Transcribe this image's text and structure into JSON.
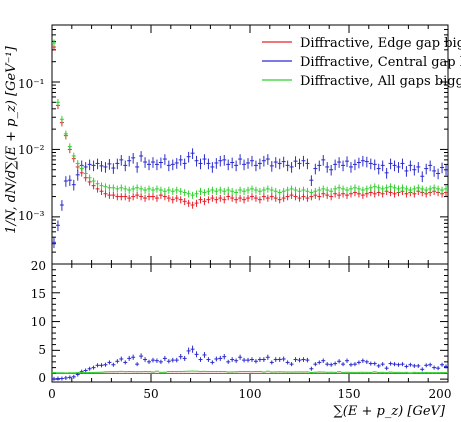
{
  "chart_data": [
    {
      "panel": "main",
      "type": "scatter",
      "log_y": true,
      "ylim": [
        0.0002,
        0.7
      ],
      "xlim": [
        0,
        200
      ],
      "ylabel": "1/N, dN/d∑(E + p_z) [GeV⁻¹]",
      "ytick_labels": [
        "10⁻¹",
        "10⁻²",
        "10⁻³"
      ],
      "ytick_values": [
        0.1,
        0.01,
        0.001
      ],
      "legend": {
        "placement": "top-right",
        "entries": [
          "Diffractive, Edge gap bigg",
          "Diffractive, Central gap bi",
          "Diffractive, All gaps bigge"
        ]
      },
      "x": [
        1,
        3,
        5,
        7,
        9,
        11,
        13,
        15,
        17,
        19,
        21,
        23,
        25,
        27,
        29,
        31,
        33,
        35,
        37,
        39,
        41,
        43,
        45,
        47,
        49,
        51,
        53,
        55,
        57,
        59,
        61,
        63,
        65,
        67,
        69,
        71,
        73,
        75,
        77,
        79,
        81,
        83,
        85,
        87,
        89,
        91,
        93,
        95,
        97,
        99,
        101,
        103,
        105,
        107,
        109,
        111,
        113,
        115,
        117,
        119,
        121,
        123,
        125,
        127,
        129,
        131,
        133,
        135,
        137,
        139,
        141,
        143,
        145,
        147,
        149,
        151,
        153,
        155,
        157,
        159,
        161,
        163,
        165,
        167,
        169,
        171,
        173,
        175,
        177,
        179,
        181,
        183,
        185,
        187,
        189,
        191,
        193,
        195,
        197,
        199
      ],
      "series": [
        {
          "name": "Diffractive, Edge gap bigg",
          "color": "#e8202a",
          "values": [
            0.33,
            0.045,
            0.025,
            0.016,
            0.01,
            0.0073,
            0.0055,
            0.0045,
            0.0038,
            0.0033,
            0.0029,
            0.0026,
            0.0024,
            0.0022,
            0.0021,
            0.0021,
            0.002,
            0.002,
            0.002,
            0.0019,
            0.002,
            0.0021,
            0.002,
            0.0019,
            0.002,
            0.002,
            0.0019,
            0.0021,
            0.002,
            0.0019,
            0.0018,
            0.0019,
            0.0018,
            0.0017,
            0.0016,
            0.0015,
            0.0016,
            0.0018,
            0.0017,
            0.0018,
            0.0019,
            0.0018,
            0.0019,
            0.0018,
            0.002,
            0.0019,
            0.0018,
            0.0019,
            0.0018,
            0.0019,
            0.002,
            0.0019,
            0.0018,
            0.002,
            0.0019,
            0.002,
            0.0019,
            0.0018,
            0.0019,
            0.002,
            0.0021,
            0.002,
            0.0019,
            0.002,
            0.0019,
            0.002,
            0.0021,
            0.002,
            0.0022,
            0.0021,
            0.002,
            0.0022,
            0.0021,
            0.0022,
            0.0021,
            0.0022,
            0.0023,
            0.0022,
            0.0021,
            0.0022,
            0.0023,
            0.0022,
            0.0023,
            0.0022,
            0.0024,
            0.0023,
            0.0022,
            0.0023,
            0.0024,
            0.0022,
            0.0023,
            0.0022,
            0.0024,
            0.0023,
            0.0022,
            0.0023,
            0.0024,
            0.0023,
            0.0022,
            0.0023
          ]
        },
        {
          "name": "Diffractive, Central gap bi",
          "color": "#2b2bd0",
          "values": [
            0.00042,
            0.00075,
            0.0015,
            0.0034,
            0.0035,
            0.003,
            0.0042,
            0.0058,
            0.0055,
            0.006,
            0.0058,
            0.0062,
            0.0057,
            0.0055,
            0.0061,
            0.0053,
            0.0062,
            0.007,
            0.0058,
            0.0068,
            0.0075,
            0.0055,
            0.008,
            0.0065,
            0.006,
            0.0065,
            0.006,
            0.0064,
            0.0072,
            0.0058,
            0.006,
            0.0063,
            0.007,
            0.0062,
            0.0078,
            0.0088,
            0.0068,
            0.0062,
            0.0072,
            0.0062,
            0.0055,
            0.0063,
            0.0068,
            0.007,
            0.006,
            0.0064,
            0.0058,
            0.0072,
            0.006,
            0.0063,
            0.0068,
            0.0058,
            0.0062,
            0.0068,
            0.0072,
            0.0057,
            0.0065,
            0.0062,
            0.0066,
            0.0058,
            0.0055,
            0.0067,
            0.0062,
            0.0068,
            0.0062,
            0.0035,
            0.0052,
            0.0058,
            0.007,
            0.0055,
            0.005,
            0.006,
            0.0065,
            0.0058,
            0.0067,
            0.0055,
            0.006,
            0.0064,
            0.0068,
            0.0066,
            0.0062,
            0.006,
            0.0052,
            0.0058,
            0.0045,
            0.0062,
            0.0058,
            0.0055,
            0.0062,
            0.0048,
            0.0058,
            0.005,
            0.0055,
            0.004,
            0.0052,
            0.0058,
            0.0048,
            0.0044,
            0.0054,
            0.005
          ]
        },
        {
          "name": "Diffractive, All gaps bigge",
          "color": "#2fd02f",
          "values": [
            0.38,
            0.05,
            0.028,
            0.017,
            0.011,
            0.008,
            0.0062,
            0.0052,
            0.0044,
            0.0038,
            0.0034,
            0.0031,
            0.0029,
            0.0028,
            0.0027,
            0.0027,
            0.0026,
            0.0027,
            0.0026,
            0.0025,
            0.0026,
            0.0027,
            0.0026,
            0.0025,
            0.0026,
            0.0025,
            0.0026,
            0.0025,
            0.0024,
            0.0025,
            0.0024,
            0.0025,
            0.0024,
            0.0023,
            0.0022,
            0.0021,
            0.0022,
            0.0024,
            0.0023,
            0.0024,
            0.0025,
            0.0024,
            0.0025,
            0.0024,
            0.0025,
            0.0024,
            0.0023,
            0.0025,
            0.0024,
            0.0025,
            0.0026,
            0.0025,
            0.0024,
            0.0025,
            0.0026,
            0.0025,
            0.0024,
            0.0023,
            0.0024,
            0.0025,
            0.0026,
            0.0025,
            0.0024,
            0.0025,
            0.0024,
            0.0023,
            0.0024,
            0.0025,
            0.0026,
            0.0025,
            0.0024,
            0.0026,
            0.0027,
            0.0026,
            0.0025,
            0.0026,
            0.0027,
            0.0026,
            0.0025,
            0.0026,
            0.0027,
            0.0028,
            0.0027,
            0.0026,
            0.0027,
            0.0028,
            0.0027,
            0.0026,
            0.0027,
            0.0026,
            0.0025,
            0.0026,
            0.0027,
            0.0026,
            0.0025,
            0.0026,
            0.0027,
            0.0026,
            0.0025,
            0.0026
          ]
        }
      ]
    },
    {
      "panel": "ratio",
      "type": "scatter",
      "ylim": [
        -0.5,
        20
      ],
      "xlim": [
        0,
        200
      ],
      "ytick_labels": [
        "0",
        "5",
        "10",
        "15",
        "20"
      ],
      "ytick_values": [
        0,
        5,
        10,
        15,
        20
      ],
      "xtick_labels": [
        "0",
        "50",
        "100",
        "150",
        "200"
      ],
      "xtick_values": [
        0,
        50,
        100,
        150,
        200
      ],
      "xlabel": "∑(E + p_z) [GeV]",
      "x": [
        1,
        3,
        5,
        7,
        9,
        11,
        13,
        15,
        17,
        19,
        21,
        23,
        25,
        27,
        29,
        31,
        33,
        35,
        37,
        39,
        41,
        43,
        45,
        47,
        49,
        51,
        53,
        55,
        57,
        59,
        61,
        63,
        65,
        67,
        69,
        71,
        73,
        75,
        77,
        79,
        81,
        83,
        85,
        87,
        89,
        91,
        93,
        95,
        97,
        99,
        101,
        103,
        105,
        107,
        109,
        111,
        113,
        115,
        117,
        119,
        121,
        123,
        125,
        127,
        129,
        131,
        133,
        135,
        137,
        139,
        141,
        143,
        145,
        147,
        149,
        151,
        153,
        155,
        157,
        159,
        161,
        163,
        165,
        167,
        169,
        171,
        173,
        175,
        177,
        179,
        181,
        183,
        185,
        187,
        189,
        191,
        193,
        195,
        197,
        199
      ],
      "series": [
        {
          "name": "Diffractive, Edge gap bigg",
          "color": "#e8202a",
          "values": [
            1,
            1,
            1,
            1,
            1,
            1,
            1,
            1,
            1,
            1,
            1,
            1,
            1,
            1,
            1,
            1,
            1,
            1,
            1,
            1,
            1,
            1,
            1,
            1,
            1,
            1,
            1,
            1,
            1,
            1,
            1,
            1,
            1,
            1,
            1,
            1,
            1,
            1,
            1,
            1,
            1,
            1,
            1,
            1,
            1,
            1,
            1,
            1,
            1,
            1,
            1,
            1,
            1,
            1,
            1,
            1,
            1,
            1,
            1,
            1,
            1,
            1,
            1,
            1,
            1,
            1,
            1,
            1,
            1,
            1,
            1,
            1,
            1,
            1,
            1,
            1,
            1,
            1,
            1,
            1,
            1,
            1,
            1,
            1,
            1,
            1,
            1,
            1,
            1,
            1,
            1,
            1,
            1,
            1,
            1,
            1,
            1,
            1,
            1,
            1
          ]
        },
        {
          "name": "Diffractive, Central gap bi",
          "color": "#2b2bd0",
          "values": [
            0.05,
            0.1,
            0.1,
            0.2,
            0.3,
            0.4,
            0.8,
            1.3,
            1.5,
            1.8,
            2.0,
            2.4,
            2.4,
            2.5,
            2.9,
            2.5,
            3.1,
            3.5,
            2.9,
            3.6,
            3.8,
            2.6,
            4.0,
            3.4,
            3.0,
            3.3,
            3.2,
            3.0,
            3.6,
            3.1,
            3.3,
            3.3,
            3.9,
            3.6,
            4.9,
            5.2,
            4.3,
            3.4,
            4.2,
            3.4,
            2.9,
            3.5,
            3.6,
            3.9,
            3.0,
            3.4,
            3.2,
            3.8,
            3.3,
            3.3,
            3.4,
            3.1,
            3.4,
            3.4,
            3.8,
            2.9,
            3.4,
            3.4,
            3.5,
            2.9,
            2.6,
            3.4,
            3.3,
            3.4,
            3.3,
            1.8,
            2.6,
            2.9,
            3.2,
            2.6,
            2.5,
            2.7,
            3.1,
            2.6,
            3.2,
            2.5,
            2.6,
            2.9,
            3.2,
            3.0,
            2.7,
            2.7,
            2.3,
            2.6,
            1.9,
            2.7,
            2.6,
            2.5,
            2.6,
            2.2,
            2.5,
            2.3,
            2.3,
            1.7,
            2.4,
            2.5,
            2.0,
            1.9,
            2.5,
            2.2
          ]
        },
        {
          "name": "Diffractive, All gaps bigge",
          "color": "#2fd02f",
          "values": [
            1.15,
            1.1,
            1.1,
            1.08,
            1.1,
            1.1,
            1.13,
            1.16,
            1.16,
            1.15,
            1.17,
            1.19,
            1.2,
            1.27,
            1.29,
            1.29,
            1.3,
            1.35,
            1.3,
            1.32,
            1.3,
            1.29,
            1.3,
            1.32,
            1.3,
            1.25,
            1.37,
            1.19,
            1.2,
            1.32,
            1.33,
            1.32,
            1.33,
            1.35,
            1.38,
            1.4,
            1.38,
            1.33,
            1.35,
            1.33,
            1.32,
            1.33,
            1.32,
            1.33,
            1.25,
            1.26,
            1.28,
            1.32,
            1.33,
            1.32,
            1.3,
            1.32,
            1.33,
            1.25,
            1.37,
            1.25,
            1.26,
            1.28,
            1.26,
            1.25,
            1.24,
            1.25,
            1.26,
            1.25,
            1.26,
            1.15,
            1.2,
            1.25,
            1.24,
            1.19,
            1.2,
            1.18,
            1.29,
            1.18,
            1.19,
            1.18,
            1.17,
            1.18,
            1.19,
            1.18,
            1.17,
            1.27,
            1.17,
            1.18,
            1.13,
            1.22,
            1.17,
            1.18,
            1.13,
            1.18,
            1.09,
            1.18,
            1.13,
            1.13,
            1.14,
            1.13,
            1.13,
            1.13,
            1.14,
            1.13
          ]
        }
      ]
    }
  ]
}
